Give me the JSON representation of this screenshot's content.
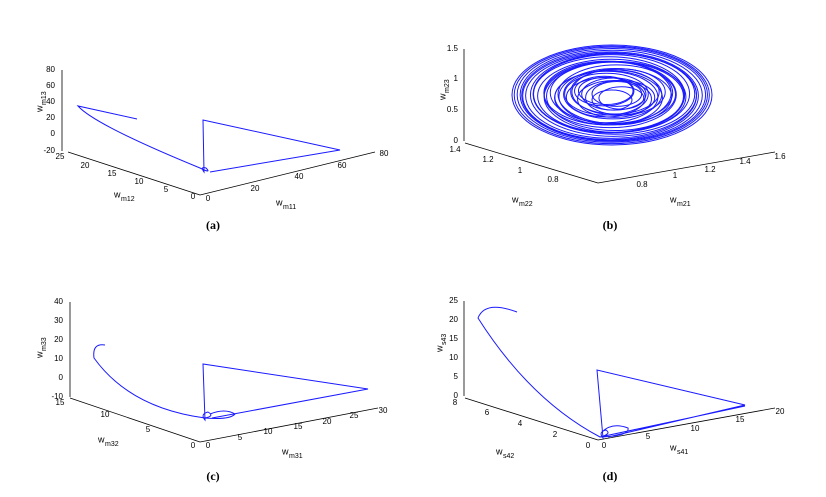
{
  "panels": [
    {
      "label": "(a)",
      "z_axis": {
        "name": "w",
        "sub": "m13",
        "ticks": [
          80,
          60,
          40,
          20,
          0,
          -20
        ]
      },
      "y_axis": {
        "name": "w",
        "sub": "m12",
        "ticks": [
          25,
          20,
          15,
          10,
          5,
          0
        ]
      },
      "x_axis": {
        "name": "w",
        "sub": "m11",
        "ticks": [
          0,
          20,
          40,
          60,
          80
        ]
      }
    },
    {
      "label": "(b)",
      "z_axis": {
        "name": "w",
        "sub": "m23",
        "ticks": [
          1.5,
          1,
          0.5,
          0
        ]
      },
      "y_axis": {
        "name": "w",
        "sub": "m22",
        "ticks": [
          1.4,
          1.2,
          1,
          0.8
        ]
      },
      "x_axis": {
        "name": "w",
        "sub": "m21",
        "ticks": [
          0.8,
          1,
          1.2,
          1.4,
          1.6
        ]
      }
    },
    {
      "label": "(c)",
      "z_axis": {
        "name": "w",
        "sub": "m33",
        "ticks": [
          40,
          30,
          20,
          10,
          0,
          -10
        ]
      },
      "y_axis": {
        "name": "w",
        "sub": "m32",
        "ticks": [
          15,
          10,
          5,
          0
        ]
      },
      "x_axis": {
        "name": "w",
        "sub": "m31",
        "ticks": [
          0,
          5,
          10,
          15,
          20,
          25,
          30
        ]
      }
    },
    {
      "label": "(d)",
      "z_axis": {
        "name": "w",
        "sub": "s43",
        "ticks": [
          25,
          20,
          15,
          10,
          5,
          0
        ]
      },
      "y_axis": {
        "name": "w",
        "sub": "s42",
        "ticks": [
          8,
          6,
          4,
          2,
          0
        ]
      },
      "x_axis": {
        "name": "w",
        "sub": "s41",
        "ticks": [
          0,
          5,
          10,
          15,
          20
        ]
      }
    }
  ]
}
